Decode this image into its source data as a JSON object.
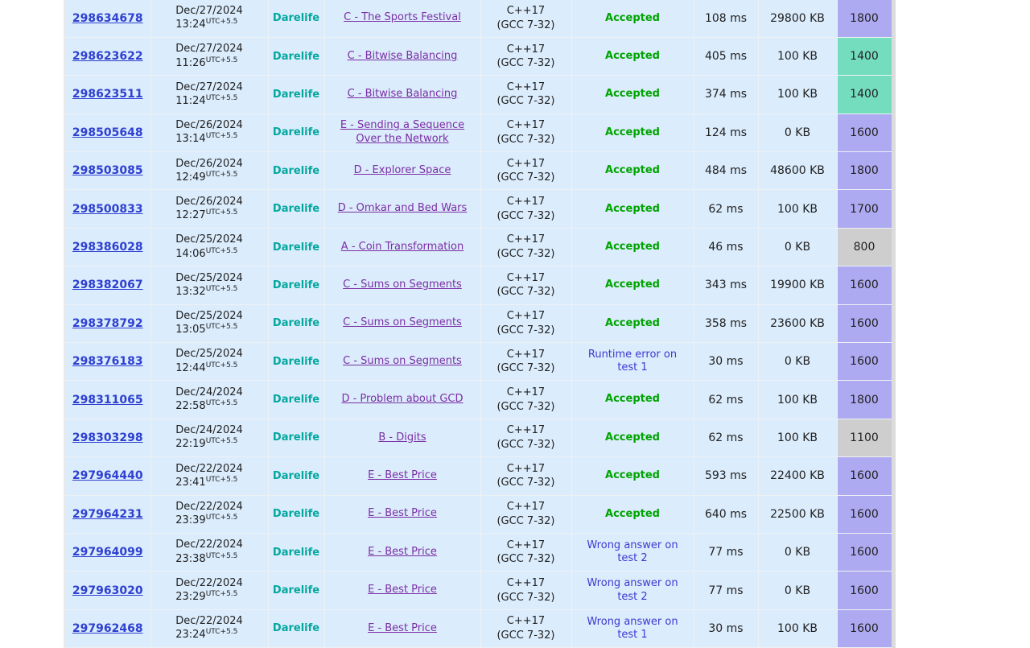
{
  "colors": {
    "row_bg": "#dbecfc",
    "cell_border": "#eef1f4",
    "table_left_border": "#e9e9e9",
    "table_right_border": "#dcdcdc",
    "text": "#212121",
    "id_link": "#2e41d0",
    "problem_link": "#7b2fa5",
    "user_cyan": "#03a89e",
    "verdict_accepted": "#00a400",
    "verdict_rejected": "#3a3ad0",
    "rating_blue": "#aeaaf2",
    "rating_green": "#74ddbd",
    "rating_gray": "#cecece"
  },
  "table": {
    "timezone_suffix": "UTC+5.5",
    "rows": [
      {
        "id": "298634678",
        "date": "Dec/27/2024",
        "time": "13:24",
        "user": "Darelife",
        "problem": "C - The Sports Festival",
        "lang": "C++17 (GCC 7-32)",
        "verdict": "Accepted",
        "verdict_type": "accepted",
        "exec_time": "108 ms",
        "memory": "29800 KB",
        "rating": "1800",
        "rating_color": "blue"
      },
      {
        "id": "298623622",
        "date": "Dec/27/2024",
        "time": "11:26",
        "user": "Darelife",
        "problem": "C - Bitwise Balancing",
        "lang": "C++17 (GCC 7-32)",
        "verdict": "Accepted",
        "verdict_type": "accepted",
        "exec_time": "405 ms",
        "memory": "100 KB",
        "rating": "1400",
        "rating_color": "green"
      },
      {
        "id": "298623511",
        "date": "Dec/27/2024",
        "time": "11:24",
        "user": "Darelife",
        "problem": "C - Bitwise Balancing",
        "lang": "C++17 (GCC 7-32)",
        "verdict": "Accepted",
        "verdict_type": "accepted",
        "exec_time": "374 ms",
        "memory": "100 KB",
        "rating": "1400",
        "rating_color": "green"
      },
      {
        "id": "298505648",
        "date": "Dec/26/2024",
        "time": "13:14",
        "user": "Darelife",
        "problem": "E - Sending a Sequence Over the Network",
        "lang": "C++17 (GCC 7-32)",
        "verdict": "Accepted",
        "verdict_type": "accepted",
        "exec_time": "124 ms",
        "memory": "0 KB",
        "rating": "1600",
        "rating_color": "blue"
      },
      {
        "id": "298503085",
        "date": "Dec/26/2024",
        "time": "12:49",
        "user": "Darelife",
        "problem": "D - Explorer Space",
        "lang": "C++17 (GCC 7-32)",
        "verdict": "Accepted",
        "verdict_type": "accepted",
        "exec_time": "484 ms",
        "memory": "48600 KB",
        "rating": "1800",
        "rating_color": "blue"
      },
      {
        "id": "298500833",
        "date": "Dec/26/2024",
        "time": "12:27",
        "user": "Darelife",
        "problem": "D - Omkar and Bed Wars",
        "lang": "C++17 (GCC 7-32)",
        "verdict": "Accepted",
        "verdict_type": "accepted",
        "exec_time": "62 ms",
        "memory": "100 KB",
        "rating": "1700",
        "rating_color": "blue"
      },
      {
        "id": "298386028",
        "date": "Dec/25/2024",
        "time": "14:06",
        "user": "Darelife",
        "problem": "A - Coin Transformation",
        "lang": "C++17 (GCC 7-32)",
        "verdict": "Accepted",
        "verdict_type": "accepted",
        "exec_time": "46 ms",
        "memory": "0 KB",
        "rating": "800",
        "rating_color": "gray"
      },
      {
        "id": "298382067",
        "date": "Dec/25/2024",
        "time": "13:32",
        "user": "Darelife",
        "problem": "C - Sums on Segments",
        "lang": "C++17 (GCC 7-32)",
        "verdict": "Accepted",
        "verdict_type": "accepted",
        "exec_time": "343 ms",
        "memory": "19900 KB",
        "rating": "1600",
        "rating_color": "blue"
      },
      {
        "id": "298378792",
        "date": "Dec/25/2024",
        "time": "13:05",
        "user": "Darelife",
        "problem": "C - Sums on Segments",
        "lang": "C++17 (GCC 7-32)",
        "verdict": "Accepted",
        "verdict_type": "accepted",
        "exec_time": "358 ms",
        "memory": "23600 KB",
        "rating": "1600",
        "rating_color": "blue"
      },
      {
        "id": "298376183",
        "date": "Dec/25/2024",
        "time": "12:44",
        "user": "Darelife",
        "problem": "C - Sums on Segments",
        "lang": "C++17 (GCC 7-32)",
        "verdict": "Runtime error on test 1",
        "verdict_type": "rejected",
        "exec_time": "30 ms",
        "memory": "0 KB",
        "rating": "1600",
        "rating_color": "blue"
      },
      {
        "id": "298311065",
        "date": "Dec/24/2024",
        "time": "22:58",
        "user": "Darelife",
        "problem": "D - Problem about GCD",
        "lang": "C++17 (GCC 7-32)",
        "verdict": "Accepted",
        "verdict_type": "accepted",
        "exec_time": "62 ms",
        "memory": "100 KB",
        "rating": "1800",
        "rating_color": "blue"
      },
      {
        "id": "298303298",
        "date": "Dec/24/2024",
        "time": "22:19",
        "user": "Darelife",
        "problem": "B - Digits",
        "lang": "C++17 (GCC 7-32)",
        "verdict": "Accepted",
        "verdict_type": "accepted",
        "exec_time": "62 ms",
        "memory": "100 KB",
        "rating": "1100",
        "rating_color": "gray"
      },
      {
        "id": "297964440",
        "date": "Dec/22/2024",
        "time": "23:41",
        "user": "Darelife",
        "problem": "E - Best Price",
        "lang": "C++17 (GCC 7-32)",
        "verdict": "Accepted",
        "verdict_type": "accepted",
        "exec_time": "593 ms",
        "memory": "22400 KB",
        "rating": "1600",
        "rating_color": "blue"
      },
      {
        "id": "297964231",
        "date": "Dec/22/2024",
        "time": "23:39",
        "user": "Darelife",
        "problem": "E - Best Price",
        "lang": "C++17 (GCC 7-32)",
        "verdict": "Accepted",
        "verdict_type": "accepted",
        "exec_time": "640 ms",
        "memory": "22500 KB",
        "rating": "1600",
        "rating_color": "blue"
      },
      {
        "id": "297964099",
        "date": "Dec/22/2024",
        "time": "23:38",
        "user": "Darelife",
        "problem": "E - Best Price",
        "lang": "C++17 (GCC 7-32)",
        "verdict": "Wrong answer on test 2",
        "verdict_type": "rejected",
        "exec_time": "77 ms",
        "memory": "0 KB",
        "rating": "1600",
        "rating_color": "blue"
      },
      {
        "id": "297963020",
        "date": "Dec/22/2024",
        "time": "23:29",
        "user": "Darelife",
        "problem": "E - Best Price",
        "lang": "C++17 (GCC 7-32)",
        "verdict": "Wrong answer on test 2",
        "verdict_type": "rejected",
        "exec_time": "77 ms",
        "memory": "0 KB",
        "rating": "1600",
        "rating_color": "blue"
      },
      {
        "id": "297962468",
        "date": "Dec/22/2024",
        "time": "23:24",
        "user": "Darelife",
        "problem": "E - Best Price",
        "lang": "C++17 (GCC 7-32)",
        "verdict": "Wrong answer on test 1",
        "verdict_type": "rejected",
        "exec_time": "30 ms",
        "memory": "100 KB",
        "rating": "1600",
        "rating_color": "blue"
      }
    ]
  }
}
